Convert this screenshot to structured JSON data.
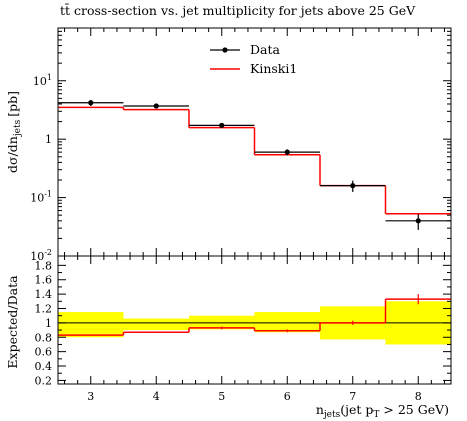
{
  "title": "tt̄ cross-section vs. jet multiplicity for jets above 25 GeV",
  "chart_data": [
    {
      "type": "line",
      "panel": "main",
      "title": "tt̄ cross-section vs. jet multiplicity for jets above 25 GeV",
      "ylabel": "dσ/dn_jets [pb]",
      "ylabel_main": "dσ/dn",
      "ylabel_sub": "jets",
      "ylabel_unit": "[pb]",
      "yscale": "log",
      "ylim": [
        0.01,
        80
      ],
      "xlim": [
        2.5,
        8.5
      ],
      "ytick_labels": [
        "10^-2",
        "10^-1",
        "1",
        "10^1"
      ],
      "ytick_values": [
        0.01,
        0.1,
        1,
        10
      ],
      "legend": {
        "position": "top-right",
        "entries": [
          "Data",
          "Kinski1"
        ]
      },
      "series": [
        {
          "name": "Data",
          "color": "#000000",
          "style": "points-with-errors",
          "x": [
            3,
            4,
            5,
            6,
            7,
            8
          ],
          "y": [
            4.2,
            3.7,
            1.72,
            0.6,
            0.16,
            0.04
          ],
          "yerr_low": [
            0.5,
            0.35,
            0.15,
            0.07,
            0.035,
            0.012
          ],
          "yerr_high": [
            0.5,
            0.35,
            0.15,
            0.07,
            0.035,
            0.012
          ]
        },
        {
          "name": "Kinski1",
          "color": "#ff0000",
          "style": "step",
          "x": [
            3,
            4,
            5,
            6,
            7,
            8
          ],
          "y": [
            3.5,
            3.2,
            1.58,
            0.54,
            0.16,
            0.053
          ]
        }
      ]
    },
    {
      "type": "line",
      "panel": "ratio",
      "ylabel": "Expected/Data",
      "ylim": [
        0.15,
        1.93
      ],
      "xlim": [
        2.5,
        8.5
      ],
      "ytick_labels": [
        "0.2",
        "0.4",
        "0.6",
        "0.8",
        "1",
        "1.2",
        "1.4",
        "1.6",
        "1.8"
      ],
      "ytick_values": [
        0.2,
        0.4,
        0.6,
        0.8,
        1.0,
        1.2,
        1.4,
        1.6,
        1.8
      ],
      "xlabel": "n_jets(jet p_T > 25 GeV)",
      "xlabel_parts": {
        "n": "n",
        "n_sub": "jets",
        "mid": "(jet p",
        "p_sub": "T",
        "tail": " > 25 GeV)"
      },
      "xtick_labels": [
        "3",
        "4",
        "5",
        "6",
        "7",
        "8"
      ],
      "xtick_values": [
        3,
        4,
        5,
        6,
        7,
        8
      ],
      "band": {
        "color": "#ffff00",
        "lower": [
          0.8,
          0.9,
          0.91,
          0.87,
          0.77,
          0.7
        ],
        "upper": [
          1.15,
          1.06,
          1.1,
          1.15,
          1.23,
          1.3
        ]
      },
      "series": [
        {
          "name": "Kinski1",
          "color": "#ff0000",
          "style": "step",
          "x": [
            3,
            4,
            5,
            6,
            7,
            8
          ],
          "y": [
            0.83,
            0.87,
            0.93,
            0.89,
            1.0,
            1.33
          ],
          "err_low": [
            0.0,
            0.0,
            0.02,
            0.02,
            0.03,
            0.07
          ],
          "err_high": [
            0.0,
            0.0,
            0.02,
            0.02,
            0.03,
            0.07
          ]
        }
      ]
    }
  ]
}
